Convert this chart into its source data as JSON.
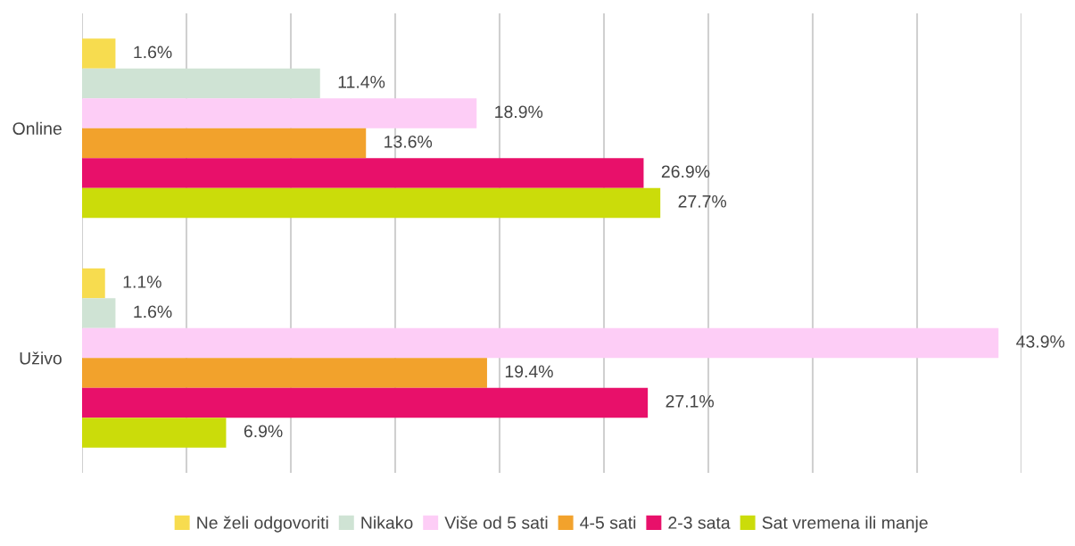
{
  "chart_data": {
    "type": "bar",
    "orientation": "horizontal",
    "categories": [
      "Online",
      "Uživo"
    ],
    "series": [
      {
        "name": "Ne želi odgovoriti",
        "color": "#f7dc4f",
        "values": [
          1.6,
          1.1
        ],
        "value_labels": [
          "1.6%",
          "1.1%"
        ]
      },
      {
        "name": "Nikako",
        "color": "#cfe3d4",
        "values": [
          11.4,
          1.6
        ],
        "value_labels": [
          "11.4%",
          "1.6%"
        ]
      },
      {
        "name": "Više od 5 sati",
        "color": "#fdcdf6",
        "values": [
          18.9,
          43.9
        ],
        "value_labels": [
          "18.9%",
          "43.9%"
        ]
      },
      {
        "name": "4-5 sati",
        "color": "#f2a22c",
        "values": [
          13.6,
          19.4
        ],
        "value_labels": [
          "13.6%",
          "19.4%"
        ]
      },
      {
        "name": "2-3 sata",
        "color": "#e8106a",
        "values": [
          26.9,
          27.1
        ],
        "value_labels": [
          "26.9%",
          "27.1%"
        ]
      },
      {
        "name": "Sat vremena ili manje",
        "color": "#cbdc0a",
        "values": [
          27.7,
          6.9
        ],
        "value_labels": [
          "27.7%",
          "6.9%"
        ]
      }
    ],
    "xlim": [
      0,
      45
    ],
    "xticks": [
      {
        "value": 0,
        "label": null
      },
      {
        "value": 5,
        "label": null
      },
      {
        "value": 10,
        "label": null
      },
      {
        "value": 15,
        "label": null
      },
      {
        "value": 20,
        "label": null
      },
      {
        "value": 25,
        "label": null
      },
      {
        "value": 30,
        "label": null
      },
      {
        "value": 35,
        "label": null
      },
      {
        "value": 40,
        "label": null
      },
      {
        "value": 45,
        "label": null
      }
    ],
    "tick_labels": "y",
    "grid": "x",
    "legend": "bottom"
  }
}
